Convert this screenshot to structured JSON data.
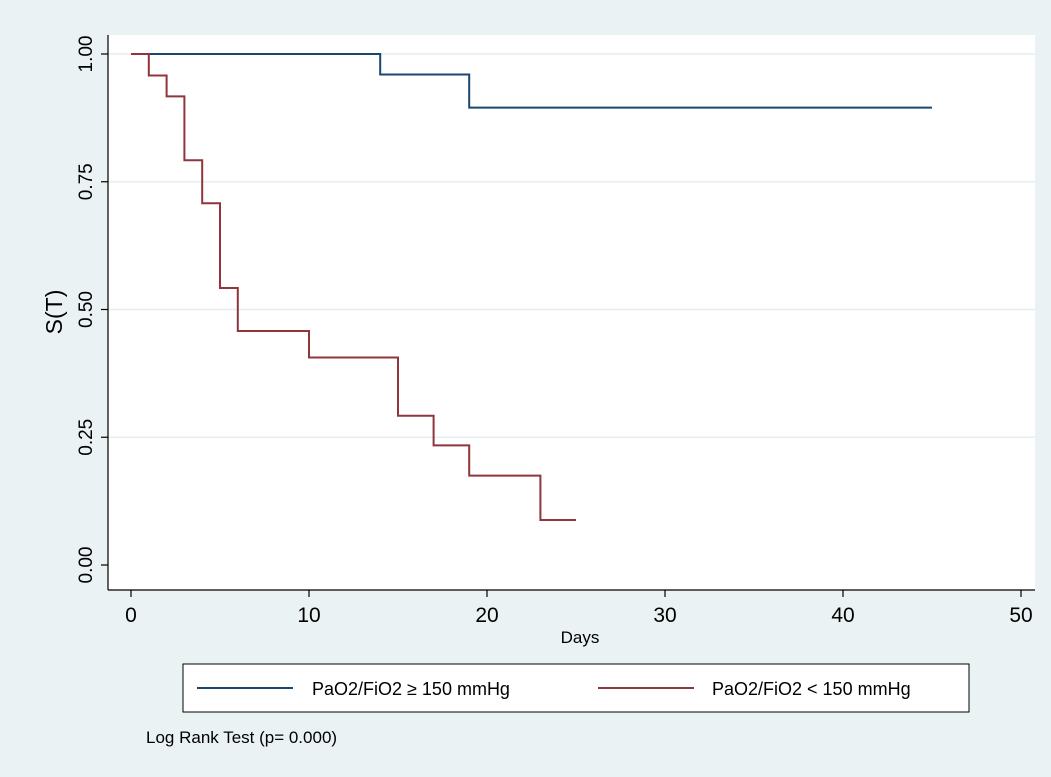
{
  "chart_data": {
    "type": "line",
    "step": true,
    "xlabel": "Days",
    "ylabel": "S(T)",
    "xlim": [
      0,
      50
    ],
    "ylim": [
      0,
      1
    ],
    "x_ticks": [
      {
        "value": 0,
        "label": "0"
      },
      {
        "value": 10,
        "label": "10"
      },
      {
        "value": 20,
        "label": "20"
      },
      {
        "value": 30,
        "label": "30"
      },
      {
        "value": 40,
        "label": "40"
      },
      {
        "value": 50,
        "label": "50"
      }
    ],
    "y_ticks": [
      {
        "value": 0,
        "label": "0.00"
      },
      {
        "value": 0.25,
        "label": "0.25"
      },
      {
        "value": 0.5,
        "label": "0.50"
      },
      {
        "value": 0.75,
        "label": "0.75"
      },
      {
        "value": 1,
        "label": "1.00"
      }
    ],
    "grid": true,
    "legend_position": "bottom",
    "series": [
      {
        "name": "PaO2/FiO2 ≥ 150 mmHg",
        "color": "#1a476f",
        "points": [
          [
            0,
            1.0
          ],
          [
            14,
            0.96
          ],
          [
            19,
            0.895
          ],
          [
            45,
            0.895
          ]
        ]
      },
      {
        "name": "PaO2/FiO2 < 150 mmHg",
        "color": "#90353b",
        "points": [
          [
            0,
            1.0
          ],
          [
            1,
            0.958
          ],
          [
            2,
            0.917
          ],
          [
            3,
            0.792
          ],
          [
            4,
            0.708
          ],
          [
            5,
            0.542
          ],
          [
            6,
            0.458
          ],
          [
            10,
            0.406
          ],
          [
            15,
            0.292
          ],
          [
            17,
            0.234
          ],
          [
            19,
            0.175
          ],
          [
            23,
            0.088
          ],
          [
            25,
            0.088
          ]
        ]
      }
    ],
    "annotation": "Log Rank Test (p= 0.000)"
  }
}
